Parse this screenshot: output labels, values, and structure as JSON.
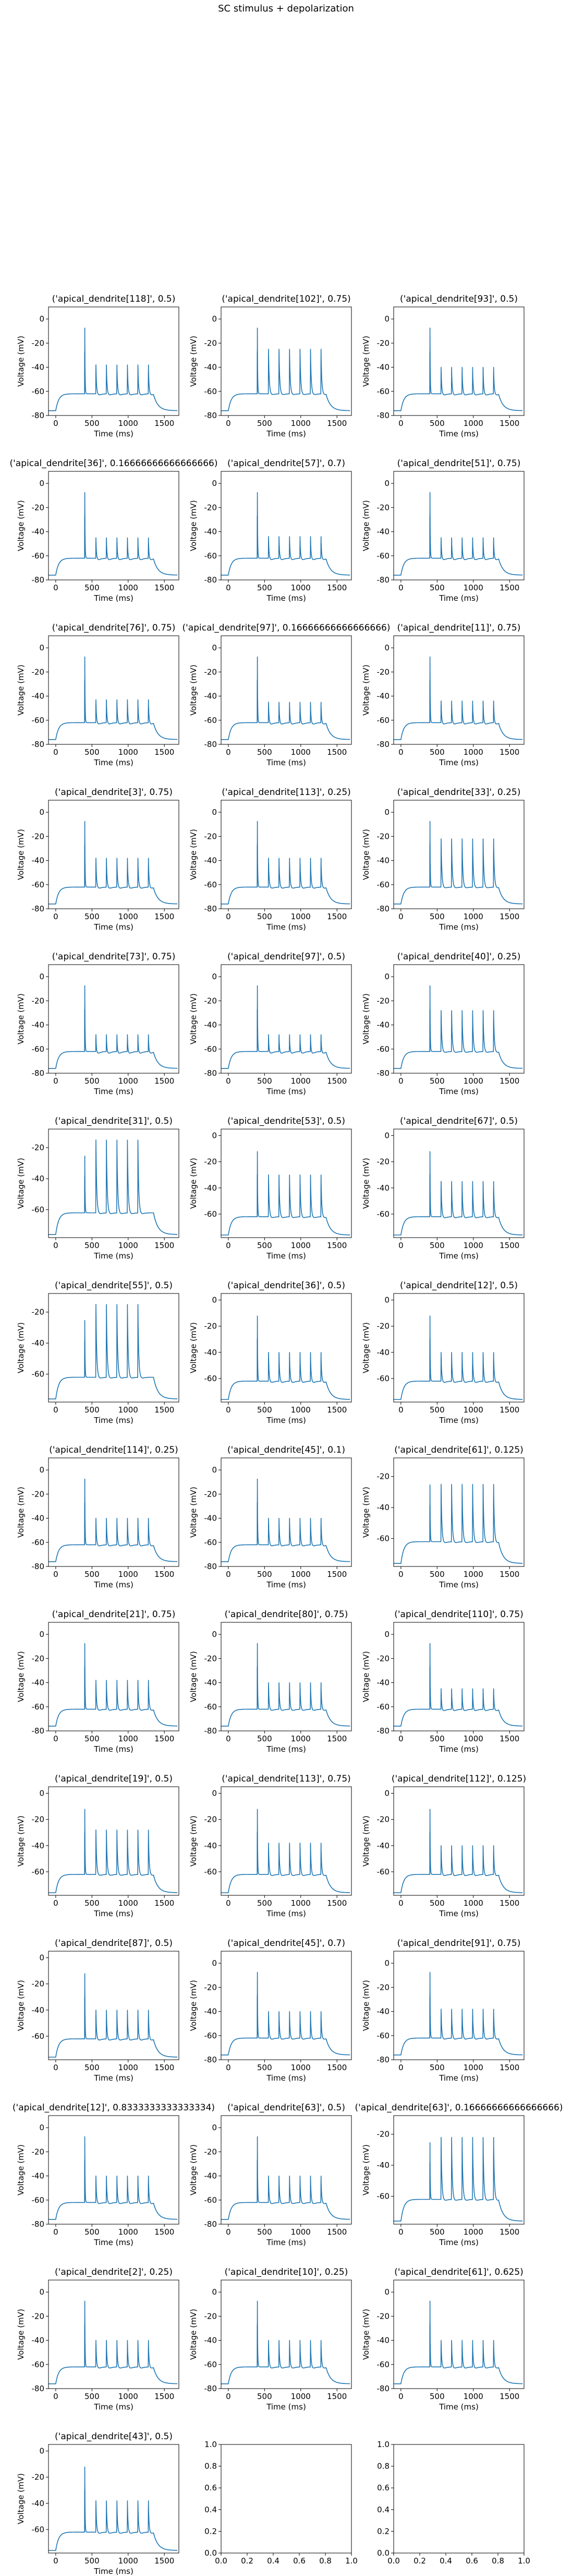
{
  "figure": {
    "suptitle": "SC stimulus + depolarization"
  },
  "chart_data": {
    "type": "line",
    "title": "SC stimulus + depolarization",
    "xlabel": "Time (ms)",
    "ylabel": "Voltage (mV)",
    "xlim": [
      -100,
      1700
    ],
    "x_ticks": [
      0,
      500,
      1000,
      1500
    ],
    "grid": false,
    "line_color": "#1f77b4",
    "waveform_model": {
      "resting_mV": -76,
      "plateau_mV": -62,
      "stim_onset_ms": 350,
      "stim_spike_ms": 400,
      "burst_spike_times_ms": [
        555,
        700,
        845,
        990,
        1135,
        1280
      ],
      "recovery_end_ms": 1600
    },
    "subplots": [
      {
        "title": "('apical_dendrite[118]', 0.5)",
        "ylim": [
          -80,
          10
        ],
        "yticks": [
          0,
          -20,
          -40,
          -60,
          -80
        ],
        "init_spike_mV": 8,
        "burst_peak_mV": -38,
        "spike_count": 6
      },
      {
        "title": "('apical_dendrite[102]', 0.75)",
        "ylim": [
          -80,
          10
        ],
        "yticks": [
          0,
          -20,
          -40,
          -60,
          -80
        ],
        "init_spike_mV": 8,
        "burst_peak_mV": -25,
        "spike_count": 6
      },
      {
        "title": "('apical_dendrite[93]', 0.5)",
        "ylim": [
          -80,
          10
        ],
        "yticks": [
          0,
          -20,
          -40,
          -60,
          -80
        ],
        "init_spike_mV": 8,
        "burst_peak_mV": -40,
        "spike_count": 6
      },
      {
        "title": "('apical_dendrite[36]', 0.16666666666666666)",
        "ylim": [
          -80,
          10
        ],
        "yticks": [
          0,
          -20,
          -40,
          -60,
          -80
        ],
        "init_spike_mV": 8,
        "burst_peak_mV": -45,
        "spike_count": 6
      },
      {
        "title": "('apical_dendrite[57]', 0.7)",
        "ylim": [
          -80,
          10
        ],
        "yticks": [
          0,
          -20,
          -40,
          -60,
          -80
        ],
        "init_spike_mV": 8,
        "burst_peak_mV": -44,
        "spike_count": 6
      },
      {
        "title": "('apical_dendrite[51]', 0.75)",
        "ylim": [
          -80,
          10
        ],
        "yticks": [
          0,
          -20,
          -40,
          -60,
          -80
        ],
        "init_spike_mV": 8,
        "burst_peak_mV": -45,
        "spike_count": 6
      },
      {
        "title": "('apical_dendrite[76]', 0.75)",
        "ylim": [
          -80,
          10
        ],
        "yticks": [
          0,
          -20,
          -40,
          -60,
          -80
        ],
        "init_spike_mV": 8,
        "burst_peak_mV": -43,
        "spike_count": 6
      },
      {
        "title": "('apical_dendrite[97]', 0.16666666666666666)",
        "ylim": [
          -80,
          10
        ],
        "yticks": [
          0,
          -20,
          -40,
          -60,
          -80
        ],
        "init_spike_mV": 8,
        "burst_peak_mV": -45,
        "spike_count": 6
      },
      {
        "title": "('apical_dendrite[11]', 0.75)",
        "ylim": [
          -80,
          10
        ],
        "yticks": [
          0,
          -20,
          -40,
          -60,
          -80
        ],
        "init_spike_mV": 8,
        "burst_peak_mV": -44,
        "spike_count": 6
      },
      {
        "title": "('apical_dendrite[3]', 0.75)",
        "ylim": [
          -80,
          10
        ],
        "yticks": [
          0,
          -20,
          -40,
          -60,
          -80
        ],
        "init_spike_mV": 8,
        "burst_peak_mV": -38,
        "spike_count": 6
      },
      {
        "title": "('apical_dendrite[113]', 0.25)",
        "ylim": [
          -80,
          10
        ],
        "yticks": [
          0,
          -20,
          -40,
          -60,
          -80
        ],
        "init_spike_mV": 8,
        "burst_peak_mV": -38,
        "spike_count": 6
      },
      {
        "title": "('apical_dendrite[33]', 0.25)",
        "ylim": [
          -80,
          10
        ],
        "yticks": [
          0,
          -20,
          -40,
          -60,
          -80
        ],
        "init_spike_mV": 8,
        "burst_peak_mV": -22,
        "spike_count": 6
      },
      {
        "title": "('apical_dendrite[73]', 0.75)",
        "ylim": [
          -80,
          10
        ],
        "yticks": [
          0,
          -20,
          -40,
          -60,
          -80
        ],
        "init_spike_mV": 8,
        "burst_peak_mV": -48,
        "spike_count": 6
      },
      {
        "title": "('apical_dendrite[97]', 0.5)",
        "ylim": [
          -80,
          10
        ],
        "yticks": [
          0,
          -20,
          -40,
          -60,
          -80
        ],
        "init_spike_mV": 8,
        "burst_peak_mV": -48,
        "spike_count": 6
      },
      {
        "title": "('apical_dendrite[40]', 0.25)",
        "ylim": [
          -80,
          10
        ],
        "yticks": [
          0,
          -20,
          -40,
          -60,
          -80
        ],
        "init_spike_mV": 8,
        "burst_peak_mV": -28,
        "spike_count": 6
      },
      {
        "title": "('apical_dendrite[31]', 0.5)",
        "ylim": [
          -78,
          -8
        ],
        "yticks": [
          -20,
          -40,
          -60
        ],
        "init_spike_mV": -15,
        "burst_peak_mV": -15,
        "spike_count": 5
      },
      {
        "title": "('apical_dendrite[53]', 0.5)",
        "ylim": [
          -78,
          5
        ],
        "yticks": [
          0,
          -20,
          -40,
          -60
        ],
        "init_spike_mV": 2,
        "burst_peak_mV": -30,
        "spike_count": 6
      },
      {
        "title": "('apical_dendrite[67]', 0.5)",
        "ylim": [
          -78,
          5
        ],
        "yticks": [
          0,
          -20,
          -40,
          -60
        ],
        "init_spike_mV": 2,
        "burst_peak_mV": -35,
        "spike_count": 6
      },
      {
        "title": "('apical_dendrite[55]', 0.5)",
        "ylim": [
          -78,
          -8
        ],
        "yticks": [
          -20,
          -40,
          -60
        ],
        "init_spike_mV": -15,
        "burst_peak_mV": -15,
        "spike_count": 5
      },
      {
        "title": "('apical_dendrite[36]', 0.5)",
        "ylim": [
          -78,
          5
        ],
        "yticks": [
          0,
          -20,
          -40,
          -60
        ],
        "init_spike_mV": 2,
        "burst_peak_mV": -40,
        "spike_count": 6
      },
      {
        "title": "('apical_dendrite[12]', 0.5)",
        "ylim": [
          -78,
          5
        ],
        "yticks": [
          0,
          -20,
          -40,
          -60
        ],
        "init_spike_mV": 2,
        "burst_peak_mV": -40,
        "spike_count": 6
      },
      {
        "title": "('apical_dendrite[114]', 0.25)",
        "ylim": [
          -80,
          10
        ],
        "yticks": [
          0,
          -20,
          -40,
          -60,
          -80
        ],
        "init_spike_mV": 8,
        "burst_peak_mV": -40,
        "spike_count": 6
      },
      {
        "title": "('apical_dendrite[45]', 0.1)",
        "ylim": [
          -80,
          10
        ],
        "yticks": [
          0,
          -20,
          -40,
          -60,
          -80
        ],
        "init_spike_mV": 8,
        "burst_peak_mV": -40,
        "spike_count": 6
      },
      {
        "title": "('apical_dendrite[61]', 0.125)",
        "ylim": [
          -78,
          -8
        ],
        "yticks": [
          -20,
          -40,
          -60
        ],
        "init_spike_mV": -15,
        "burst_peak_mV": -25,
        "spike_count": 6
      },
      {
        "title": "('apical_dendrite[21]', 0.75)",
        "ylim": [
          -80,
          10
        ],
        "yticks": [
          0,
          -20,
          -40,
          -60,
          -80
        ],
        "init_spike_mV": 8,
        "burst_peak_mV": -38,
        "spike_count": 6
      },
      {
        "title": "('apical_dendrite[80]', 0.75)",
        "ylim": [
          -80,
          10
        ],
        "yticks": [
          0,
          -20,
          -40,
          -60,
          -80
        ],
        "init_spike_mV": 8,
        "burst_peak_mV": -40,
        "spike_count": 6
      },
      {
        "title": "('apical_dendrite[110]', 0.75)",
        "ylim": [
          -80,
          10
        ],
        "yticks": [
          0,
          -20,
          -40,
          -60,
          -80
        ],
        "init_spike_mV": 8,
        "burst_peak_mV": -45,
        "spike_count": 6
      },
      {
        "title": "('apical_dendrite[19]', 0.5)",
        "ylim": [
          -78,
          5
        ],
        "yticks": [
          0,
          -20,
          -40,
          -60
        ],
        "init_spike_mV": 2,
        "burst_peak_mV": -28,
        "spike_count": 6
      },
      {
        "title": "('apical_dendrite[113]', 0.75)",
        "ylim": [
          -78,
          5
        ],
        "yticks": [
          0,
          -20,
          -40,
          -60
        ],
        "init_spike_mV": 2,
        "burst_peak_mV": -38,
        "spike_count": 6
      },
      {
        "title": "('apical_dendrite[112]', 0.125)",
        "ylim": [
          -78,
          5
        ],
        "yticks": [
          0,
          -20,
          -40,
          -60
        ],
        "init_spike_mV": 2,
        "burst_peak_mV": -40,
        "spike_count": 6
      },
      {
        "title": "('apical_dendrite[87]', 0.5)",
        "ylim": [
          -78,
          5
        ],
        "yticks": [
          0,
          -20,
          -40,
          -60
        ],
        "init_spike_mV": 2,
        "burst_peak_mV": -40,
        "spike_count": 6
      },
      {
        "title": "('apical_dendrite[45]', 0.7)",
        "ylim": [
          -80,
          10
        ],
        "yticks": [
          0,
          -20,
          -40,
          -60,
          -80
        ],
        "init_spike_mV": 8,
        "burst_peak_mV": -40,
        "spike_count": 6
      },
      {
        "title": "('apical_dendrite[91]', 0.75)",
        "ylim": [
          -80,
          10
        ],
        "yticks": [
          0,
          -20,
          -40,
          -60,
          -80
        ],
        "init_spike_mV": 8,
        "burst_peak_mV": -38,
        "spike_count": 6
      },
      {
        "title": "('apical_dendrite[12]', 0.8333333333333334)",
        "ylim": [
          -80,
          10
        ],
        "yticks": [
          0,
          -20,
          -40,
          -60,
          -80
        ],
        "init_spike_mV": 8,
        "burst_peak_mV": -40,
        "spike_count": 6
      },
      {
        "title": "('apical_dendrite[63]', 0.5)",
        "ylim": [
          -80,
          10
        ],
        "yticks": [
          0,
          -20,
          -40,
          -60,
          -80
        ],
        "init_spike_mV": 8,
        "burst_peak_mV": -40,
        "spike_count": 6
      },
      {
        "title": "('apical_dendrite[63]', 0.16666666666666666)",
        "ylim": [
          -78,
          -8
        ],
        "yticks": [
          -20,
          -40,
          -60
        ],
        "init_spike_mV": -15,
        "burst_peak_mV": -22,
        "spike_count": 6
      },
      {
        "title": "('apical_dendrite[2]', 0.25)",
        "ylim": [
          -80,
          10
        ],
        "yticks": [
          0,
          -20,
          -40,
          -60,
          -80
        ],
        "init_spike_mV": 8,
        "burst_peak_mV": -40,
        "spike_count": 6
      },
      {
        "title": "('apical_dendrite[10]', 0.25)",
        "ylim": [
          -80,
          10
        ],
        "yticks": [
          0,
          -20,
          -40,
          -60,
          -80
        ],
        "init_spike_mV": 8,
        "burst_peak_mV": -40,
        "spike_count": 6
      },
      {
        "title": "('apical_dendrite[61]', 0.625)",
        "ylim": [
          -80,
          10
        ],
        "yticks": [
          0,
          -20,
          -40,
          -60,
          -80
        ],
        "init_spike_mV": 8,
        "burst_peak_mV": -40,
        "spike_count": 6
      },
      {
        "title": "('apical_dendrite[43]', 0.5)",
        "ylim": [
          -78,
          5
        ],
        "yticks": [
          0,
          -20,
          -40,
          -60
        ],
        "init_spike_mV": 2,
        "burst_peak_mV": -38,
        "spike_count": 6
      }
    ],
    "empty_axes": {
      "xlim": [
        0,
        1
      ],
      "ylim": [
        0,
        1
      ],
      "x_ticks": [
        "0.0",
        "0.2",
        "0.4",
        "0.6",
        "0.8",
        "1.0"
      ],
      "y_ticks": [
        "0.0",
        "0.2",
        "0.4",
        "0.6",
        "0.8",
        "1.0"
      ]
    }
  }
}
